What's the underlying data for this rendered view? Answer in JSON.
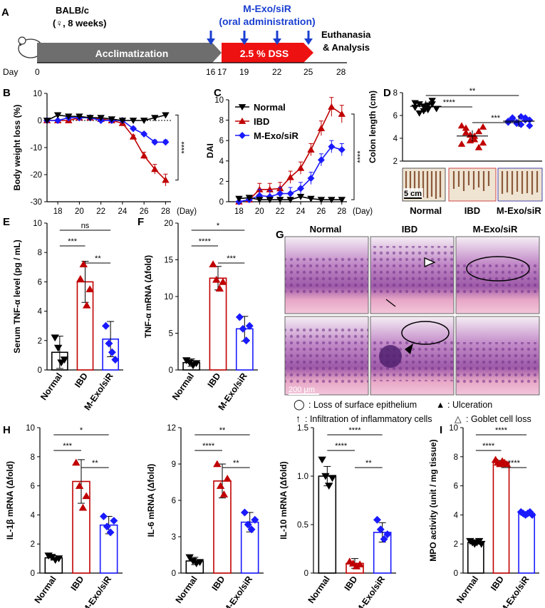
{
  "colors": {
    "normal": "#000000",
    "ibd": "#c00000",
    "mexo": "#1a1aff",
    "dss": "#ee1111",
    "accl": "#6e6e6e",
    "tl_blue": "#1a3fd0"
  },
  "timeline": {
    "panel_label": "A",
    "mouse_line1": "BALB/c",
    "mouse_line2": "(♀, 8 weeks)",
    "treat_line1": "M-Exo/siR",
    "treat_line2": "(oral administration)",
    "accl_label": "Acclimatization",
    "dss_label": "2.5 % DSS",
    "end_line1": "Euthanasia",
    "end_line2": "& Analysis",
    "day_label": "Day",
    "days": [
      "0",
      "16",
      "17",
      "19",
      "22",
      "25",
      "28"
    ]
  },
  "chart_data": [
    {
      "id": "B",
      "type": "line",
      "panel_label": "B",
      "ylabel": "Body weight loss (%)",
      "xunit": "(Day)",
      "ylim": [
        -30,
        10
      ],
      "yticks": [
        -30,
        -20,
        -10,
        0,
        10
      ],
      "xlim": [
        17,
        28.5
      ],
      "xticks": [
        18,
        20,
        22,
        24,
        26,
        28
      ],
      "x": [
        17,
        18,
        19,
        20,
        21,
        22,
        23,
        24,
        25,
        26,
        27,
        28
      ],
      "series": [
        {
          "name": "Normal",
          "values": [
            0,
            2,
            1.5,
            1.5,
            1,
            1,
            0.5,
            0,
            0,
            0,
            1,
            2
          ]
        },
        {
          "name": "IBD",
          "values": [
            0,
            0,
            0,
            1,
            1,
            0.5,
            0,
            -1,
            -6,
            -13,
            -18,
            -22
          ]
        },
        {
          "name": "M-Exo/siR",
          "values": [
            0,
            0,
            1,
            1,
            1,
            0,
            0,
            0,
            -3,
            -5,
            -8,
            -8
          ]
        }
      ],
      "sig": "****"
    },
    {
      "id": "C",
      "type": "line",
      "panel_label": "C",
      "ylabel": "DAI",
      "xunit": "(Day)",
      "ylim": [
        0,
        10
      ],
      "yticks": [
        0,
        2,
        4,
        6,
        8,
        10
      ],
      "xlim": [
        17,
        28.5
      ],
      "xticks": [
        18,
        20,
        22,
        24,
        26,
        28
      ],
      "x": [
        18,
        19,
        20,
        21,
        22,
        23,
        24,
        25,
        26,
        27,
        28
      ],
      "series": [
        {
          "name": "Normal",
          "values": [
            0.3,
            0.4,
            0.2,
            0.2,
            0.2,
            0.2,
            0.5,
            0.3,
            0.2,
            0.2,
            0.2
          ]
        },
        {
          "name": "IBD",
          "values": [
            0,
            0.2,
            1.2,
            1.2,
            1.3,
            2.4,
            3.3,
            5.1,
            7.2,
            9.3,
            8.6
          ]
        },
        {
          "name": "M-Exo/siR",
          "values": [
            0,
            0.2,
            0.6,
            0.5,
            0.8,
            0.8,
            1.3,
            2.3,
            4.1,
            5.4,
            5.1
          ]
        }
      ],
      "legend": [
        "Normal",
        "IBD",
        "M-Exo/siR"
      ],
      "sig": "****"
    },
    {
      "id": "D",
      "type": "scatter",
      "panel_label": "D",
      "ylabel": "Colon length (cm)",
      "ylim": [
        2,
        8
      ],
      "yticks": [
        2,
        4,
        6,
        8
      ],
      "categories": [
        "Normal",
        "IBD",
        "M-Exo/siR"
      ],
      "means": [
        6.8,
        4.2,
        5.5
      ],
      "points": [
        [
          6.7,
          7.0,
          6.4,
          6.9,
          7.3,
          6.6,
          7.1,
          6.2,
          6.8,
          6.5,
          7.0,
          6.6
        ],
        [
          5.1,
          4.5,
          3.8,
          4.2,
          3.2,
          5.0,
          3.5,
          4.9,
          4.3,
          3.9,
          4.6,
          3.6
        ],
        [
          5.4,
          5.8,
          5.3,
          5.9,
          5.6,
          5.1,
          5.5,
          5.7,
          5.4,
          5.2,
          5.8,
          5.6
        ]
      ],
      "sig": [
        {
          "a": 0,
          "b": 1,
          "text": "****"
        },
        {
          "a": 0,
          "b": 2,
          "text": "**"
        },
        {
          "a": 1,
          "b": 2,
          "text": "***"
        }
      ],
      "scale_label": "5 cm"
    },
    {
      "id": "E",
      "type": "bar",
      "panel_label": "E",
      "ylabel": "Serum TNF-α level (pg / mL)",
      "ylim": [
        0,
        10
      ],
      "yticks": [
        0,
        2,
        4,
        6,
        8,
        10
      ],
      "categories": [
        "Normal",
        "IBD",
        "M-Exo/siR"
      ],
      "values": [
        1.2,
        6.0,
        2.1
      ],
      "errors": [
        1.1,
        1.4,
        1.2
      ],
      "points": [
        [
          2.2,
          1.5,
          0.5,
          0.7
        ],
        [
          6.2,
          7.2,
          4.4,
          5.5
        ],
        [
          3.0,
          1.8,
          1.2,
          0.7
        ]
      ],
      "sig": [
        {
          "a": 0,
          "b": 1,
          "text": "***"
        },
        {
          "a": 0,
          "b": 2,
          "text": "ns"
        },
        {
          "a": 1,
          "b": 2,
          "text": "**"
        }
      ]
    },
    {
      "id": "F",
      "type": "bar",
      "panel_label": "F",
      "ylabel": "TNF-α mRNA (Δfold)",
      "ylim": [
        0,
        20
      ],
      "yticks": [
        0,
        5,
        10,
        15,
        20
      ],
      "categories": [
        "Normal",
        "IBD",
        "M-Exo/siR"
      ],
      "values": [
        1.0,
        12.5,
        5.6
      ],
      "errors": [
        0.5,
        1.6,
        1.7
      ],
      "points": [
        [
          1.3,
          1.0,
          0.6,
          0.9
        ],
        [
          14.4,
          12.3,
          11.1,
          12.0
        ],
        [
          7.2,
          5.6,
          4.0,
          6.0
        ]
      ],
      "sig": [
        {
          "a": 0,
          "b": 1,
          "text": "****"
        },
        {
          "a": 0,
          "b": 2,
          "text": "*"
        },
        {
          "a": 1,
          "b": 2,
          "text": "***"
        }
      ]
    },
    {
      "id": "H1",
      "type": "bar",
      "panel_label": "H",
      "ylabel": "IL-1β mRNA (Δfold)",
      "ylim": [
        0,
        10
      ],
      "yticks": [
        0,
        2,
        4,
        6,
        8,
        10
      ],
      "categories": [
        "Normal",
        "IBD",
        "M-Exo/siR"
      ],
      "values": [
        1.05,
        6.3,
        3.3
      ],
      "errors": [
        0.15,
        1.5,
        0.6
      ],
      "points": [
        [
          1.2,
          1.1,
          0.9,
          1.0
        ],
        [
          7.6,
          6.0,
          4.5,
          5.3
        ],
        [
          3.9,
          3.2,
          2.8,
          3.6
        ]
      ],
      "sig": [
        {
          "a": 0,
          "b": 1,
          "text": "***"
        },
        {
          "a": 0,
          "b": 2,
          "text": "*"
        },
        {
          "a": 1,
          "b": 2,
          "text": "**"
        }
      ]
    },
    {
      "id": "H2",
      "type": "bar",
      "panel_label": "",
      "ylabel": "IL-6 mRNA (Δfold)",
      "ylim": [
        0,
        12
      ],
      "yticks": [
        0,
        3,
        6,
        9,
        12
      ],
      "categories": [
        "Normal",
        "IBD",
        "M-Exo/siR"
      ],
      "values": [
        1.0,
        7.6,
        4.2
      ],
      "errors": [
        0.3,
        1.4,
        0.8
      ],
      "points": [
        [
          1.3,
          1.0,
          0.8,
          0.9
        ],
        [
          9.0,
          7.2,
          6.5,
          7.8
        ],
        [
          5.0,
          4.0,
          3.6,
          4.4
        ]
      ],
      "sig": [
        {
          "a": 0,
          "b": 1,
          "text": "****"
        },
        {
          "a": 0,
          "b": 2,
          "text": "**"
        },
        {
          "a": 1,
          "b": 2,
          "text": "**"
        }
      ]
    },
    {
      "id": "H3",
      "type": "bar",
      "panel_label": "",
      "ylabel": "IL-10 mRNA (Δfold)",
      "ylim": [
        0,
        1.5
      ],
      "yticks": [
        0,
        0.5,
        1.0,
        1.5
      ],
      "ytick_labels": [
        "0",
        "0.5",
        "1.0",
        "1.5"
      ],
      "categories": [
        "Normal",
        "IBD",
        "M-Exo/siR"
      ],
      "values": [
        1.0,
        0.1,
        0.42
      ],
      "errors": [
        0.1,
        0.05,
        0.1
      ],
      "points": [
        [
          1.17,
          1.0,
          0.9,
          0.98
        ],
        [
          0.12,
          0.1,
          0.07,
          0.09
        ],
        [
          0.55,
          0.45,
          0.35,
          0.4
        ]
      ],
      "sig": [
        {
          "a": 0,
          "b": 1,
          "text": "****"
        },
        {
          "a": 0,
          "b": 2,
          "text": "****"
        },
        {
          "a": 1,
          "b": 2,
          "text": "**"
        }
      ]
    },
    {
      "id": "I",
      "type": "bar",
      "panel_label": "I",
      "ylabel": "MPO activity (unit / mg tissue)",
      "ylim": [
        0,
        10
      ],
      "yticks": [
        0,
        2,
        4,
        6,
        8,
        10
      ],
      "categories": [
        "Normal",
        "IBD",
        "M-Exo/siR"
      ],
      "values": [
        2.1,
        7.6,
        4.1
      ],
      "errors": [
        0.1,
        0.15,
        0.1
      ],
      "points": [
        [
          2.2,
          2.1,
          2.0,
          2.1,
          2.2,
          2.0
        ],
        [
          7.8,
          7.6,
          7.5,
          7.7,
          7.6,
          7.5
        ],
        [
          4.2,
          4.1,
          4.0,
          4.1,
          4.2,
          4.0
        ]
      ],
      "sig": [
        {
          "a": 0,
          "b": 1,
          "text": "****"
        },
        {
          "a": 0,
          "b": 2,
          "text": "****"
        },
        {
          "a": 1,
          "b": 2,
          "text": "****"
        }
      ]
    }
  ],
  "histology": {
    "panel_label": "G",
    "columns": [
      "Normal",
      "IBD",
      "M-Exo/siR"
    ],
    "scale_label": "200 μm",
    "legend": [
      {
        "symbol": "◯",
        "text": ": Loss of surface epithelium"
      },
      {
        "symbol": "▲",
        "text": ": Ulceration"
      },
      {
        "symbol": "↑",
        "text": ": Infiltration of inflammatory cells"
      },
      {
        "symbol": "△",
        "text": ":  Goblet cell loss"
      }
    ]
  }
}
